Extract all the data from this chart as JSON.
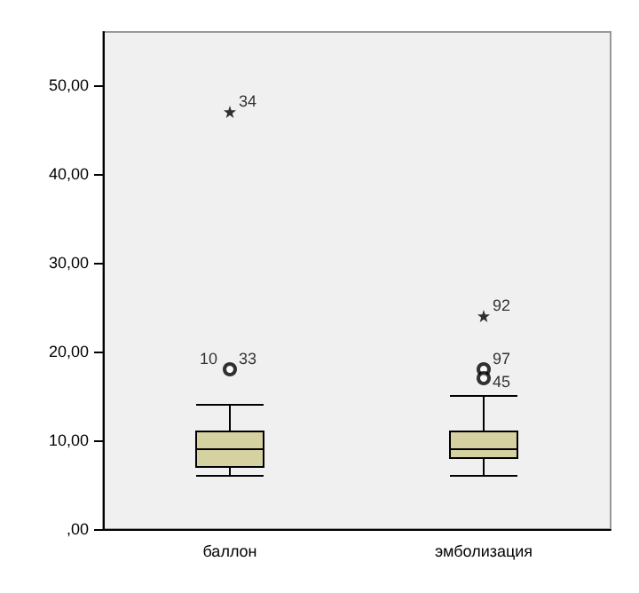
{
  "chart_data": {
    "type": "box",
    "categories": [
      "баллон",
      "эмболизация"
    ],
    "boxes": [
      {
        "low": 6,
        "q1": 7,
        "median": 9,
        "q3": 11,
        "high": 14
      },
      {
        "low": 6,
        "q1": 8,
        "median": 9,
        "q3": 11,
        "high": 15
      }
    ],
    "color": "#d6d1a0",
    "series": [
      {
        "type": "scatter",
        "marker": "star",
        "color": "#000000",
        "x": [
          "баллон",
          "эмболизация"
        ],
        "values": [
          47,
          24
        ]
      },
      {
        "type": "scatter",
        "marker": "circle",
        "color": "#000000",
        "x": [
          "баллон",
          "эмболизация",
          "эмболизация"
        ],
        "values": [
          18,
          18,
          17
        ]
      }
    ],
    "annotations": [
      {
        "text": "10",
        "x": "баллон",
        "y": 18
      },
      {
        "text": "33",
        "x": "баллон",
        "y": 18
      },
      {
        "text": "34",
        "x": "баллон",
        "y": 47
      },
      {
        "text": "92",
        "x": "эмболизация",
        "y": 24
      },
      {
        "text": "97",
        "x": "эмболизация",
        "y": 18
      },
      {
        "text": "45",
        "x": "эмболизация",
        "y": 17
      }
    ],
    "ylim": [
      0,
      56
    ],
    "yticks": [
      {
        "value": 0,
        "label": ",00"
      },
      {
        "value": 10,
        "label": "10,00"
      },
      {
        "value": 20,
        "label": "20,00"
      },
      {
        "value": 30,
        "label": "30,00"
      },
      {
        "value": 40,
        "label": "40,00"
      },
      {
        "value": 50,
        "label": "50,00"
      }
    ],
    "grid": false
  }
}
